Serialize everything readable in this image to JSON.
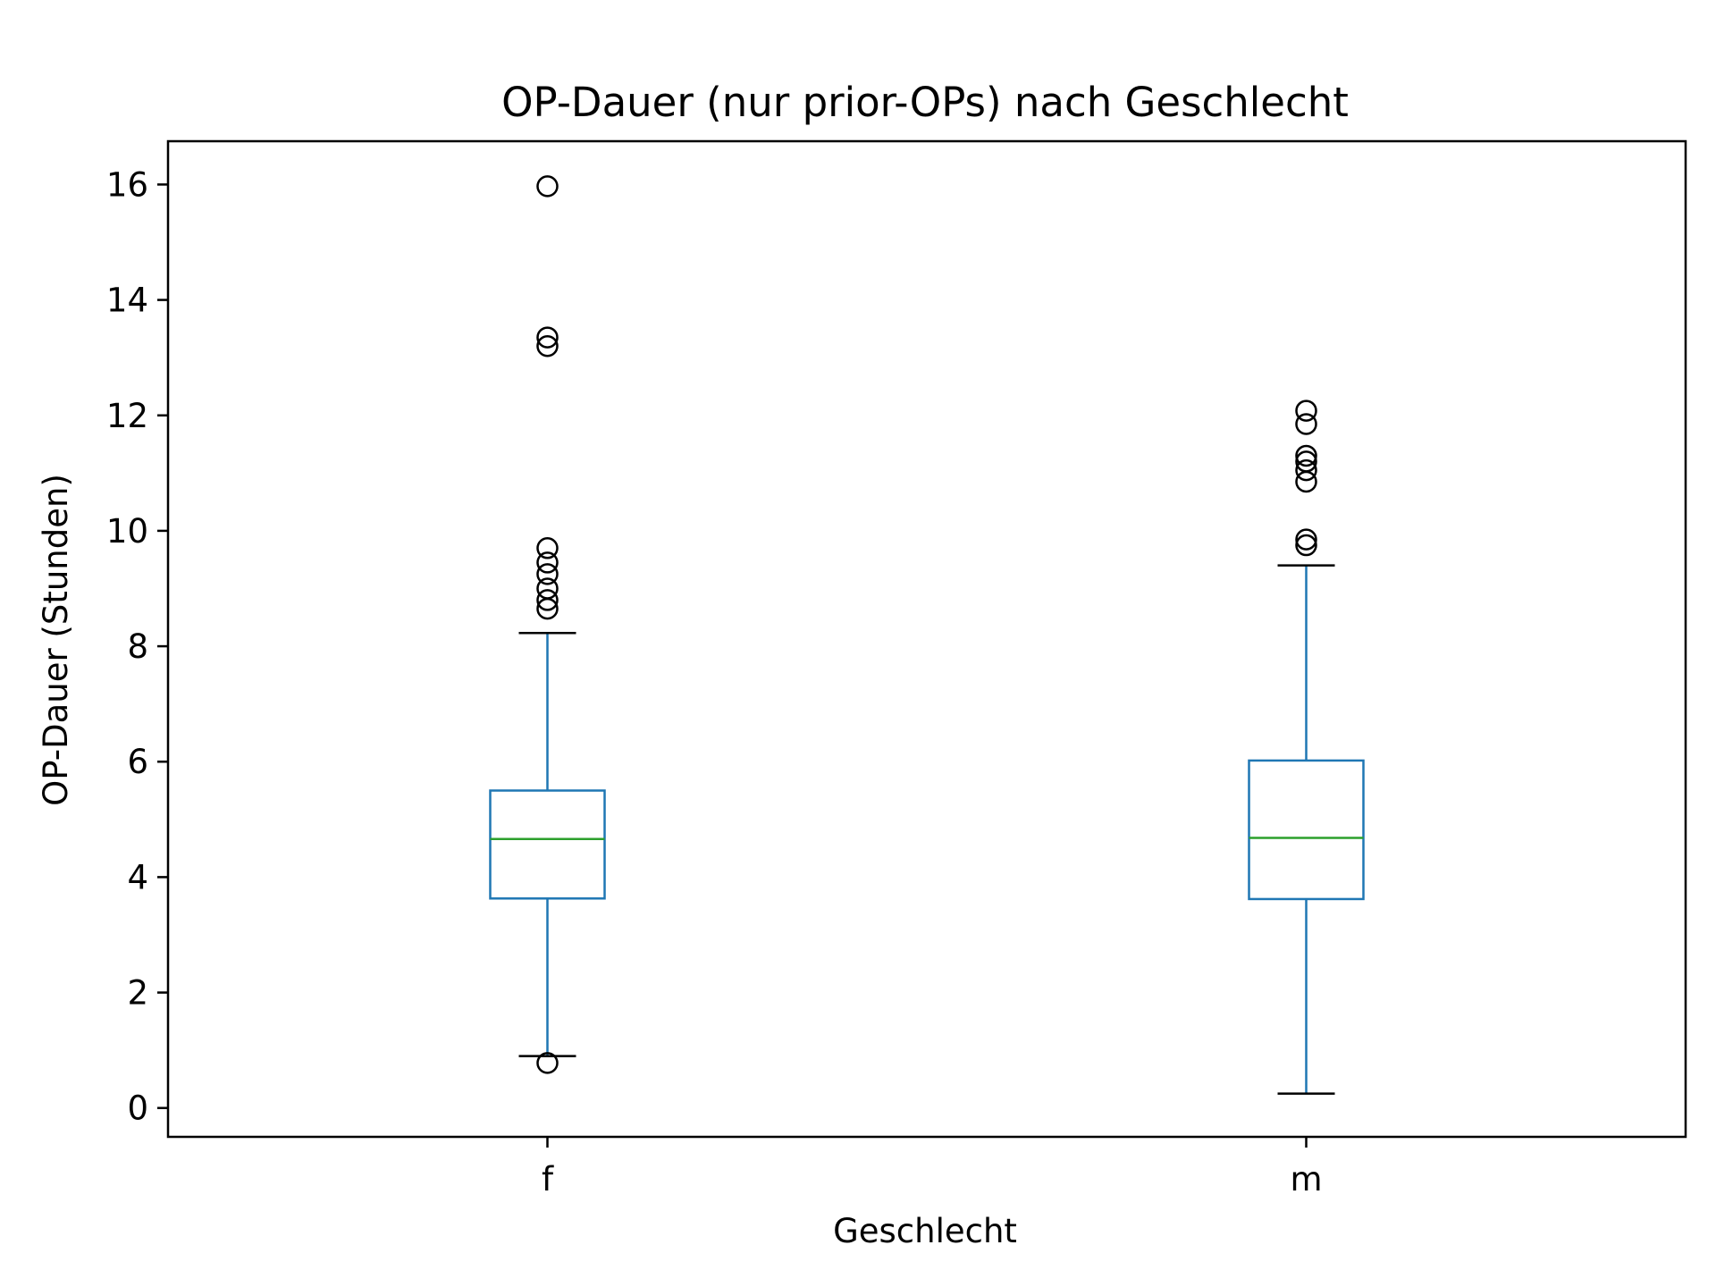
{
  "chart_data": {
    "type": "box",
    "title": "OP-Dauer (nur prior-OPs) nach Geschlecht",
    "xlabel": "Geschlecht",
    "ylabel": "OP-Dauer (Stunden)",
    "categories": [
      "f",
      "m"
    ],
    "ylim": [
      -0.5,
      16.75
    ],
    "yticks": [
      0,
      2,
      4,
      6,
      8,
      10,
      12,
      14,
      16
    ],
    "grid": false,
    "boxes": [
      {
        "category": "f",
        "whisker_low": 0.9,
        "q1": 3.63,
        "median": 4.66,
        "q3": 5.5,
        "whisker_high": 8.23,
        "outliers": [
          15.97,
          13.35,
          13.2,
          9.7,
          9.45,
          9.25,
          9.0,
          8.8,
          8.65,
          0.78
        ]
      },
      {
        "category": "m",
        "whisker_low": 0.25,
        "q1": 3.62,
        "median": 4.68,
        "q3": 6.02,
        "whisker_high": 9.4,
        "outliers": [
          12.08,
          11.85,
          11.3,
          11.2,
          11.05,
          10.85,
          9.85,
          9.75
        ]
      }
    ],
    "colors": {
      "box": "#1f77b4",
      "median": "#2ca02c",
      "whisker_cap": "#000000",
      "outlier": "#000000",
      "frame": "#000000"
    }
  }
}
